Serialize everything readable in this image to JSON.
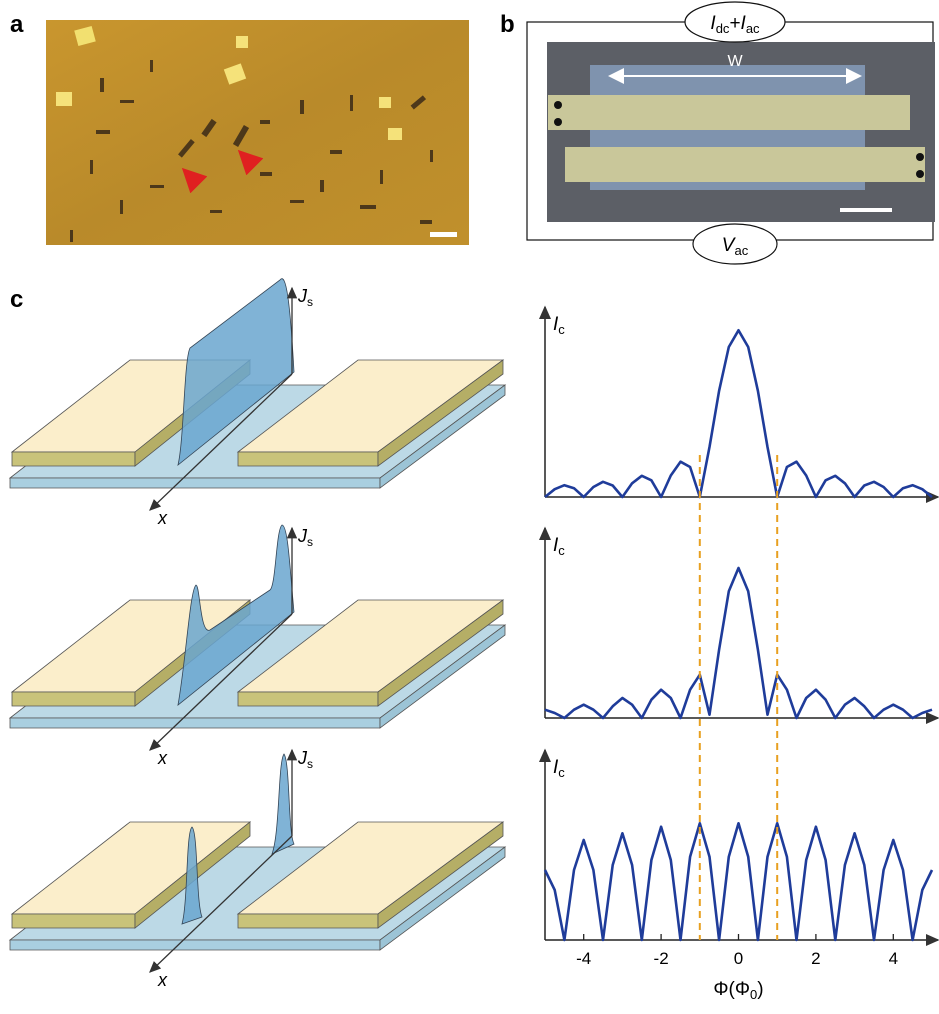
{
  "panel_labels": {
    "a": "a",
    "b": "b",
    "c": "c"
  },
  "panel_b": {
    "width_label": "W",
    "source_label": [
      "I",
      "dc",
      "+",
      "I",
      "ac"
    ],
    "voltage_label": [
      "V",
      "ac"
    ]
  },
  "diagrams": [
    {
      "x_label": "x",
      "y_label": [
        "J",
        "s"
      ]
    },
    {
      "x_label": "x",
      "y_label": [
        "J",
        "s"
      ]
    },
    {
      "x_label": "x",
      "y_label": [
        "J",
        "s"
      ]
    }
  ],
  "reference_lines": {
    "x": [
      -1,
      1
    ],
    "color": "#e8a020"
  },
  "chart_data": [
    {
      "type": "line",
      "x": [
        -5,
        -4.75,
        -4.5,
        -4.25,
        -4,
        -3.75,
        -3.5,
        -3.25,
        -3,
        -2.75,
        -2.5,
        -2.25,
        -2,
        -1.75,
        -1.5,
        -1.25,
        -1,
        -0.75,
        -0.5,
        -0.25,
        0,
        0.25,
        0.5,
        0.75,
        1,
        1.25,
        1.5,
        1.75,
        2,
        2.25,
        2.5,
        2.75,
        3,
        3.25,
        3.5,
        3.75,
        4,
        4.25,
        4.5,
        4.75,
        5
      ],
      "series": [
        {
          "color": "#1f3c9a",
          "values": [
            0,
            0.047,
            0.071,
            0.053,
            0,
            0.06,
            0.091,
            0.069,
            0,
            0.082,
            0.127,
            0.1,
            0,
            0.129,
            0.212,
            0.18,
            0,
            0.3,
            0.637,
            0.9,
            1,
            0.9,
            0.637,
            0.3,
            0,
            0.18,
            0.212,
            0.129,
            0,
            0.1,
            0.127,
            0.082,
            0,
            0.069,
            0.091,
            0.06,
            0,
            0.053,
            0.071,
            0.047,
            0
          ]
        }
      ],
      "xlim": [
        -5,
        5
      ],
      "ylim": [
        0,
        1.05
      ],
      "y_label": [
        "I",
        "c"
      ]
    },
    {
      "type": "line",
      "x": [
        -5,
        -4.75,
        -4.5,
        -4.25,
        -4,
        -3.75,
        -3.5,
        -3.25,
        -3,
        -2.75,
        -2.5,
        -2.25,
        -2,
        -1.75,
        -1.5,
        -1.25,
        -1,
        -0.75,
        -0.5,
        -0.25,
        0,
        0.25,
        0.5,
        0.75,
        1,
        1.25,
        1.5,
        1.75,
        2,
        2.25,
        2.5,
        2.75,
        3,
        3.25,
        3.5,
        3.75,
        4,
        4.25,
        4.5,
        4.75,
        5
      ],
      "series": [
        {
          "color": "#1f3c9a",
          "values": [
            0.05,
            0.03,
            0,
            0.05,
            0.08,
            0.05,
            0,
            0.07,
            0.12,
            0.08,
            0,
            0.11,
            0.17,
            0.12,
            0,
            0.17,
            0.26,
            0.02,
            0.41,
            0.76,
            0.9,
            0.76,
            0.41,
            0.02,
            0.26,
            0.17,
            0,
            0.12,
            0.17,
            0.11,
            0,
            0.08,
            0.12,
            0.07,
            0,
            0.05,
            0.08,
            0.05,
            0,
            0.03,
            0.05
          ]
        }
      ],
      "xlim": [
        -5,
        5
      ],
      "ylim": [
        0,
        1.05
      ],
      "y_label": [
        "I",
        "c"
      ]
    },
    {
      "type": "line",
      "x": [
        -5,
        -4.75,
        -4.5,
        -4.25,
        -4,
        -3.75,
        -3.5,
        -3.25,
        -3,
        -2.75,
        -2.5,
        -2.25,
        -2,
        -1.75,
        -1.5,
        -1.25,
        -1,
        -0.75,
        -0.5,
        -0.25,
        0,
        0.25,
        0.5,
        0.75,
        1,
        1.25,
        1.5,
        1.75,
        2,
        2.25,
        2.5,
        2.75,
        3,
        3.25,
        3.5,
        3.75,
        4,
        4.25,
        4.5,
        4.75,
        5
      ],
      "series": [
        {
          "color": "#1f3c9a",
          "values": [
            0.42,
            0.3,
            0,
            0.42,
            0.6,
            0.42,
            0,
            0.45,
            0.64,
            0.45,
            0,
            0.48,
            0.68,
            0.48,
            0,
            0.5,
            0.7,
            0.5,
            0,
            0.5,
            0.7,
            0.5,
            0,
            0.5,
            0.7,
            0.5,
            0,
            0.48,
            0.68,
            0.48,
            0,
            0.45,
            0.64,
            0.45,
            0,
            0.42,
            0.6,
            0.42,
            0,
            0.3,
            0.42
          ]
        }
      ],
      "xlim": [
        -5,
        5
      ],
      "ylim": [
        0,
        1.05
      ],
      "xticks": [
        -4,
        -2,
        0,
        2,
        4
      ],
      "y_label": [
        "I",
        "c"
      ],
      "x_label": [
        "Φ(Φ",
        "0",
        ")"
      ]
    }
  ]
}
